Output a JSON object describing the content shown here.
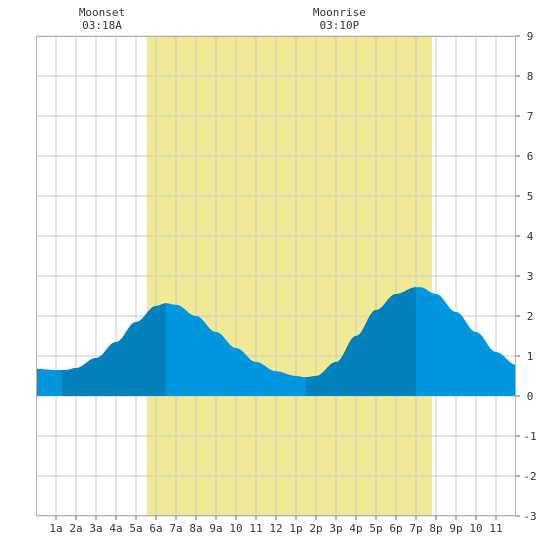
{
  "chart_data": {
    "type": "area",
    "x_unit": "hour of day",
    "y_unit": "ft",
    "xlim": [
      0,
      24
    ],
    "ylim": [
      -3,
      9
    ],
    "y_ticks": [
      -3,
      -2,
      -1,
      0,
      1,
      2,
      3,
      4,
      5,
      6,
      7,
      8,
      9
    ],
    "x_tick_labels": [
      "1a",
      "2a",
      "3a",
      "4a",
      "5a",
      "6a",
      "7a",
      "8a",
      "9a",
      "10",
      "11",
      "12",
      "1p",
      "2p",
      "3p",
      "4p",
      "5p",
      "6p",
      "7p",
      "8p",
      "9p",
      "10",
      "11"
    ],
    "grid": true,
    "daylight": {
      "start": 5.53,
      "end": 19.8
    },
    "moon_events": [
      {
        "name": "Moonset",
        "time": "03:18A",
        "hour": 3.3
      },
      {
        "name": "Moonrise",
        "time": "03:10P",
        "hour": 15.17
      }
    ],
    "series": [
      {
        "x": [
          0,
          1,
          1.5,
          2,
          3,
          4,
          5,
          6,
          6.5,
          7,
          8,
          9,
          10,
          11,
          12,
          13,
          13.5,
          14,
          15,
          16,
          17,
          18,
          19,
          19.2,
          20,
          21,
          22,
          23,
          24
        ],
        "y": [
          0.68,
          0.65,
          0.65,
          0.7,
          0.95,
          1.35,
          1.85,
          2.25,
          2.32,
          2.28,
          2.0,
          1.6,
          1.2,
          0.85,
          0.62,
          0.5,
          0.47,
          0.5,
          0.85,
          1.5,
          2.15,
          2.55,
          2.72,
          2.72,
          2.55,
          2.1,
          1.6,
          1.1,
          0.78
        ]
      }
    ],
    "shade_bands": [
      {
        "start": 1.3,
        "end": 6.5
      },
      {
        "start": 13.5,
        "end": 19.0
      }
    ],
    "colors": {
      "daylight": "#f0ea96",
      "water": "#0095dc",
      "water_dark": "#0080bc",
      "grid": "#c8c8c8"
    }
  }
}
